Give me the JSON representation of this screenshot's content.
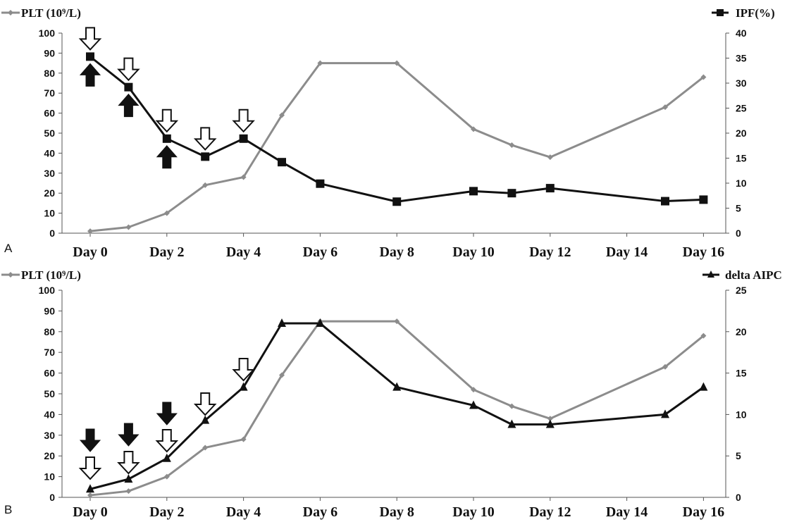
{
  "chart_data": [
    {
      "type": "line",
      "panel_label": "A",
      "x": [
        0,
        1,
        2,
        3,
        4,
        5,
        6,
        8,
        10,
        11,
        12,
        15,
        16
      ],
      "xticks": [
        "Day 0",
        "Day 2",
        "Day 4",
        "Day 6",
        "Day  8",
        "Day 10",
        "Day 12",
        "Day 14",
        "Day 16"
      ],
      "y_left_lim": [
        0,
        100
      ],
      "y_left_ticks": [
        "0",
        "10",
        "20",
        "30",
        "40",
        "50",
        "60",
        "70",
        "80",
        "90",
        "100"
      ],
      "y_right_lim": [
        0,
        40
      ],
      "y_right_ticks": [
        "0",
        "5",
        "10",
        "15",
        "20",
        "25",
        "30",
        "35",
        "40"
      ],
      "series": [
        {
          "name": "PLT (10⁹/L)",
          "axis": "left",
          "color": "#8c8c8c",
          "marker": "diamond",
          "values": [
            1,
            3,
            10,
            24,
            28,
            59,
            85,
            85,
            52,
            44,
            38,
            63,
            78
          ]
        },
        {
          "name": "IPF(%)",
          "axis": "right",
          "color": "#111111",
          "marker": "square",
          "values": [
            35.3,
            29.2,
            18.9,
            15.3,
            18.9,
            14.2,
            9.9,
            6.3,
            8.4,
            8.0,
            9.0,
            6.4,
            6.7
          ]
        }
      ],
      "annotations": {
        "open_down_arrows_at_x": [
          0,
          1,
          2,
          3,
          4
        ],
        "filled_up_arrows_at_x": [
          0,
          1,
          2
        ]
      }
    },
    {
      "type": "line",
      "panel_label": "B",
      "x": [
        0,
        1,
        2,
        3,
        4,
        5,
        6,
        8,
        10,
        11,
        12,
        15,
        16
      ],
      "xticks": [
        "Day 0",
        "Day 2",
        "Day 4",
        "Day 6",
        "Day 8",
        "Day 10",
        "Day 12",
        "Day 14",
        "Day 16"
      ],
      "y_left_lim": [
        0,
        100
      ],
      "y_left_ticks": [
        "0",
        "10",
        "20",
        "30",
        "40",
        "50",
        "60",
        "70",
        "80",
        "90",
        "100"
      ],
      "y_right_lim": [
        0,
        25
      ],
      "y_right_ticks": [
        "0",
        "5",
        "10",
        "15",
        "20",
        "25"
      ],
      "series": [
        {
          "name": "PLT (10⁹/L)",
          "axis": "left",
          "color": "#8c8c8c",
          "marker": "diamond",
          "values": [
            1,
            3,
            10,
            24,
            28,
            59,
            85,
            85,
            52,
            44,
            38,
            63,
            78
          ]
        },
        {
          "name": "delta AIPC",
          "axis": "right",
          "color": "#111111",
          "marker": "triangle",
          "values": [
            1.0,
            2.2,
            4.7,
            9.3,
            13.3,
            21.0,
            21.0,
            13.3,
            11.1,
            8.8,
            8.8,
            10.0,
            13.3
          ]
        }
      ],
      "annotations": {
        "open_down_arrows_at_x": [
          0,
          1,
          2,
          3,
          4
        ],
        "filled_down_arrows_at_x": [
          0,
          1,
          2
        ]
      }
    }
  ]
}
